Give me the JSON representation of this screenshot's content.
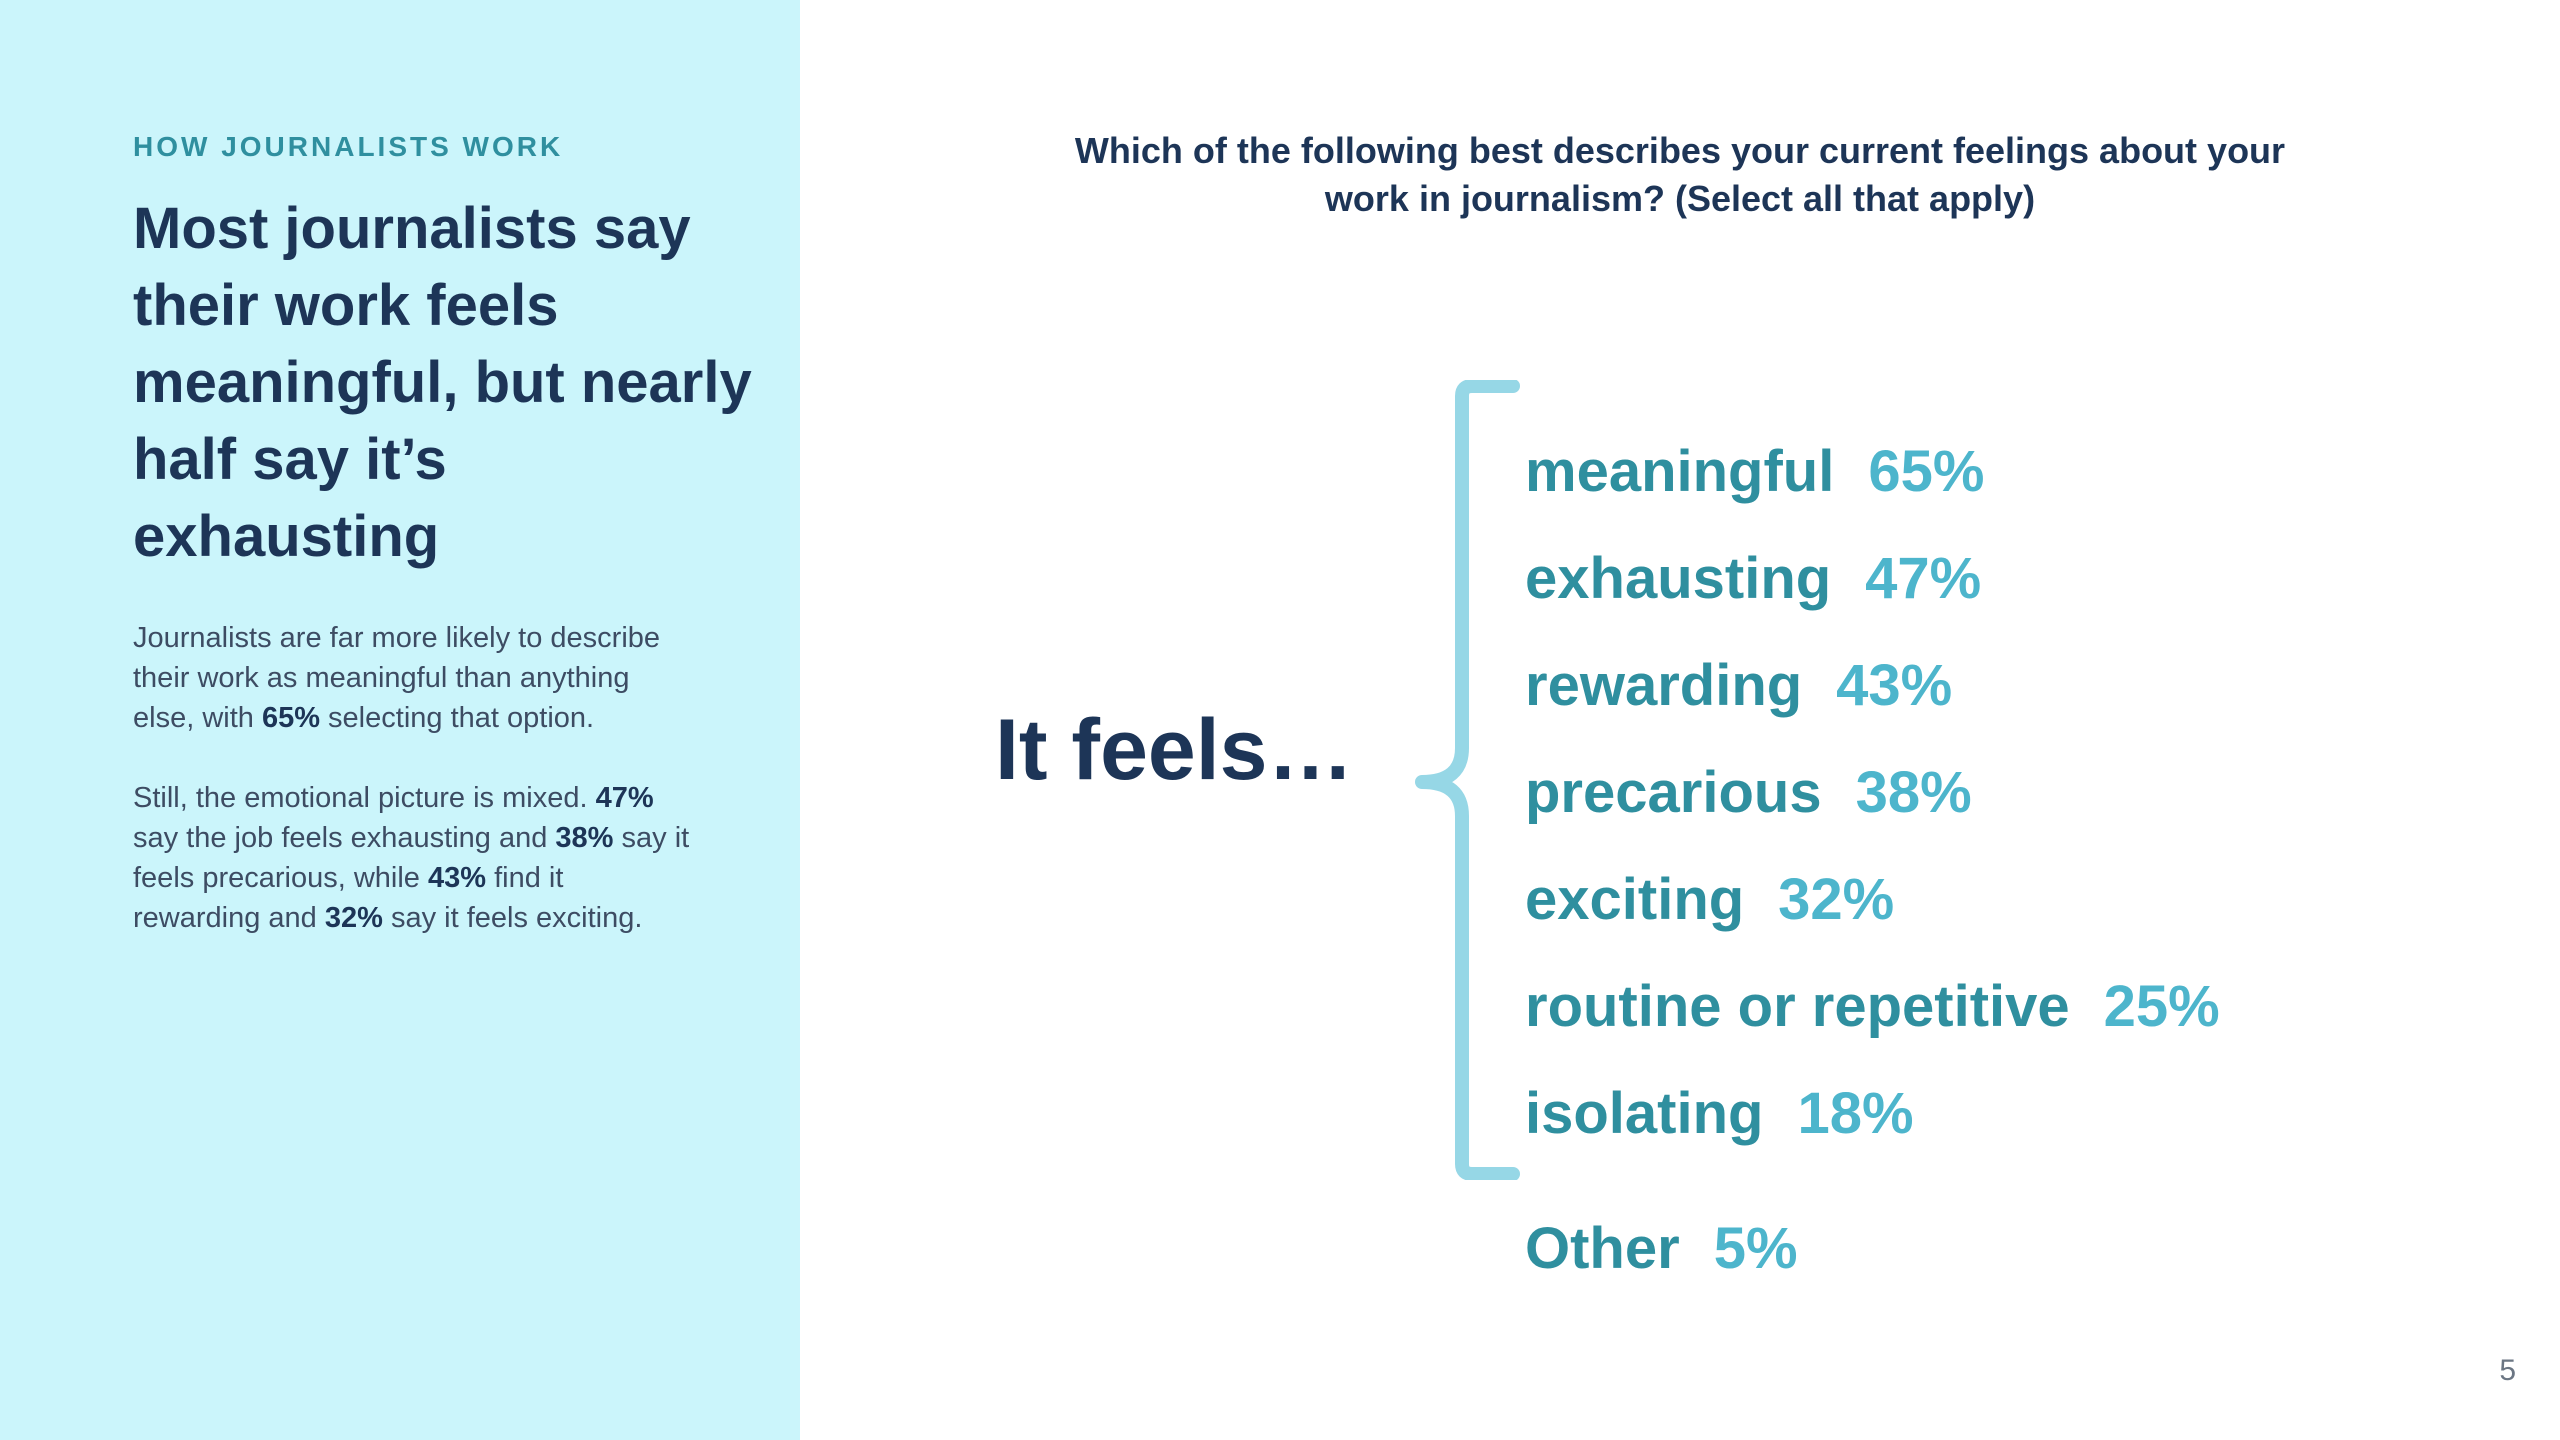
{
  "section": {
    "eyebrow": "HOW JOURNALISTS WORK",
    "headline": "Most journalists say their work feels meaningful, but nearly half say it’s exhausting"
  },
  "body": {
    "p1": {
      "before": "Journalists are far more likely to describe their work as meaningful than anything else, with ",
      "stat": "65%",
      "after": " selecting that option."
    },
    "p2": {
      "t1": "Still, the emotional picture is mixed. ",
      "s1": "47%",
      "t2": " say the job feels exhausting and ",
      "s2": "38%",
      "t3": " say it feels precarious, while ",
      "s3": "43%",
      "t4": " find it rewarding and ",
      "s4": "32%",
      "t5": " say it feels exciting."
    }
  },
  "question": "Which of the following best describes your current feelings about your work in journalism? (Select all that apply)",
  "lead_in": "It feels…",
  "feelings": [
    {
      "label": "meaningful",
      "pct": "65%"
    },
    {
      "label": "exhausting",
      "pct": "47%"
    },
    {
      "label": "rewarding",
      "pct": "43%"
    },
    {
      "label": "precarious",
      "pct": "38%"
    },
    {
      "label": "exciting",
      "pct": "32%"
    },
    {
      "label": "routine or repetitive",
      "pct": "25%"
    },
    {
      "label": "isolating",
      "pct": "18%"
    }
  ],
  "other": {
    "label": "Other",
    "pct": "5%"
  },
  "page_number": "5",
  "colors": {
    "panel_bg": "#cbf5fb",
    "navy": "#1d3557",
    "teal": "#2f8f9f",
    "light_teal": "#4db5cc",
    "brace": "#96d7e6"
  }
}
